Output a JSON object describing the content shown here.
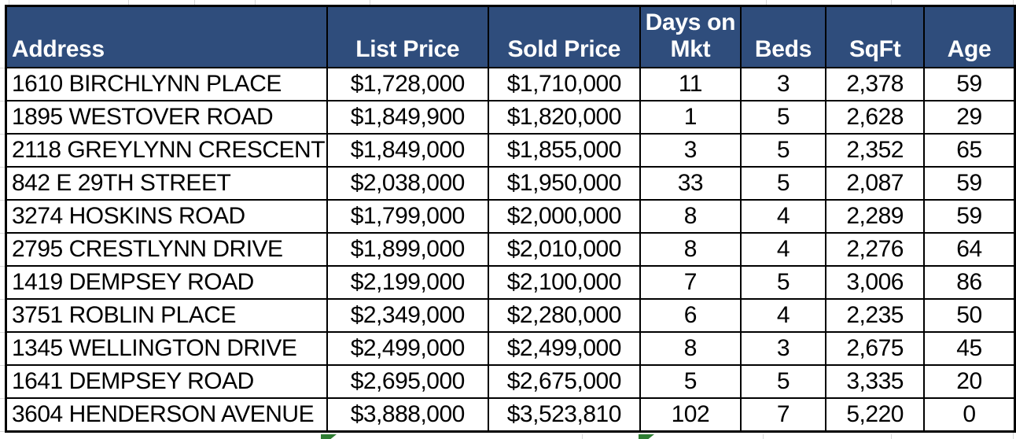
{
  "table": {
    "columns": [
      {
        "label": "Address"
      },
      {
        "label": "List Price"
      },
      {
        "label": "Sold Price"
      },
      {
        "label": "Days on Mkt"
      },
      {
        "label": "Beds"
      },
      {
        "label": "SqFt"
      },
      {
        "label": "Age"
      }
    ],
    "rows": [
      [
        "1610 BIRCHLYNN PLACE",
        "$1,728,000",
        "$1,710,000",
        "11",
        "3",
        "2,378",
        "59"
      ],
      [
        "1895 WESTOVER ROAD",
        "$1,849,900",
        "$1,820,000",
        "1",
        "5",
        "2,628",
        "29"
      ],
      [
        "2118 GREYLYNN CRESCENT",
        "$1,849,000",
        "$1,855,000",
        "3",
        "5",
        "2,352",
        "65"
      ],
      [
        "842 E 29TH STREET",
        "$2,038,000",
        "$1,950,000",
        "33",
        "5",
        "2,087",
        "59"
      ],
      [
        "3274 HOSKINS ROAD",
        "$1,799,000",
        "$2,000,000",
        "8",
        "4",
        "2,289",
        "59"
      ],
      [
        "2795 CRESTLYNN DRIVE",
        "$1,899,000",
        "$2,010,000",
        "8",
        "4",
        "2,276",
        "64"
      ],
      [
        "1419 DEMPSEY ROAD",
        "$2,199,000",
        "$2,100,000",
        "7",
        "5",
        "3,006",
        "86"
      ],
      [
        "3751 ROBLIN PLACE",
        "$2,349,000",
        "$2,280,000",
        "6",
        "4",
        "2,235",
        "50"
      ],
      [
        "1345 WELLINGTON DRIVE",
        "$2,499,000",
        "$2,499,000",
        "8",
        "3",
        "2,675",
        "45"
      ],
      [
        "1641 DEMPSEY ROAD",
        "$2,695,000",
        "$2,675,000",
        "5",
        "5",
        "3,335",
        "20"
      ],
      [
        "3604 HENDERSON AVENUE",
        "$3,888,000",
        "$3,523,810",
        "102",
        "7",
        "5,220",
        "0"
      ]
    ]
  },
  "icons": {
    "green_indicator_name": "cell-error-indicator"
  },
  "colors": {
    "header_bg": "#2F4D7C",
    "header_text": "#FFFFFF",
    "cell_text": "#000000",
    "border": "#000000",
    "green_indicator": "#2E7D32",
    "gridline": "#D8D8D8"
  }
}
